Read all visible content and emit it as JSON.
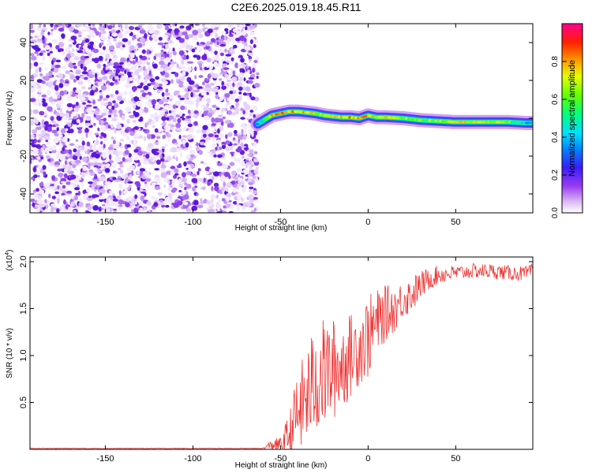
{
  "title": "C2E6.2025.019.18.45.R11",
  "chart_data": [
    {
      "type": "heatmap",
      "xlabel": "Height of straight line (km)",
      "ylabel": "Frequency (Hz)",
      "xlim": [
        -193,
        94
      ],
      "ylim": [
        -50,
        50
      ],
      "xticks": [
        -150,
        -100,
        -50,
        0,
        50
      ],
      "yticks": [
        -40,
        -20,
        0,
        20,
        40
      ],
      "colorbar": {
        "label": "Normalized spectral amplitude",
        "range": [
          0,
          1
        ],
        "ticks": [
          "0.0",
          "0.2",
          "0.4",
          "0.6",
          "0.8"
        ]
      },
      "noise_region_x": [
        -193,
        -63
      ],
      "ridge": {
        "x": [
          -63,
          -55,
          -50,
          -45,
          -40,
          -35,
          -30,
          -25,
          -20,
          -15,
          -10,
          -5,
          0,
          5,
          10,
          20,
          30,
          40,
          50,
          60,
          70,
          80,
          90,
          94
        ],
        "freq": [
          -3,
          1.5,
          2.5,
          3.5,
          3.5,
          3,
          2.5,
          1.5,
          1,
          0.5,
          0.5,
          0,
          1.5,
          0.5,
          0.5,
          0,
          -1,
          -1.5,
          -2,
          -2,
          -2,
          -2,
          -2.5,
          -2.5
        ],
        "amplitude": [
          0.35,
          0.75,
          0.8,
          0.8,
          0.75,
          0.75,
          0.7,
          0.65,
          0.8,
          0.8,
          0.8,
          0.75,
          0.8,
          0.7,
          0.75,
          0.6,
          0.6,
          0.65,
          0.7,
          0.7,
          0.7,
          0.65,
          0.35,
          0.3
        ]
      }
    },
    {
      "type": "line",
      "xlabel": "Height of straight line (km)",
      "ylabel": "SNR (10 * v/v)",
      "y_multiplier": "(x10",
      "y_multiplier_exp": "4",
      "y_multiplier_close": ")",
      "xlim": [
        -193,
        94
      ],
      "ylim": [
        0,
        2.05
      ],
      "xticks": [
        -150,
        -100,
        -50,
        0,
        50
      ],
      "yticks": [
        "0.5",
        "1.0",
        "1.5",
        "2.0"
      ],
      "series": [
        {
          "color": "#ee3333",
          "envelope": {
            "x": [
              -193,
              -60,
              -55,
              -50,
              -45,
              -40,
              -35,
              -30,
              -25,
              -20,
              -15,
              -10,
              -5,
              0,
              5,
              10,
              15,
              20,
              25,
              30,
              35,
              40,
              50,
              60,
              70,
              80,
              90,
              94
            ],
            "base": [
              0.01,
              0.01,
              0.05,
              0.05,
              0.15,
              0.4,
              0.55,
              0.75,
              0.8,
              0.85,
              0.9,
              1.0,
              1.1,
              1.2,
              1.35,
              1.45,
              1.5,
              1.6,
              1.65,
              1.75,
              1.82,
              1.86,
              1.88,
              1.9,
              1.9,
              1.88,
              1.87,
              1.9
            ],
            "amp": [
              0.004,
              0.004,
              0.06,
              0.08,
              0.25,
              0.45,
              0.55,
              0.6,
              0.6,
              0.55,
              0.5,
              0.45,
              0.42,
              0.45,
              0.35,
              0.3,
              0.25,
              0.2,
              0.2,
              0.15,
              0.12,
              0.1,
              0.08,
              0.08,
              0.08,
              0.08,
              0.08,
              0.08
            ]
          }
        }
      ]
    }
  ]
}
